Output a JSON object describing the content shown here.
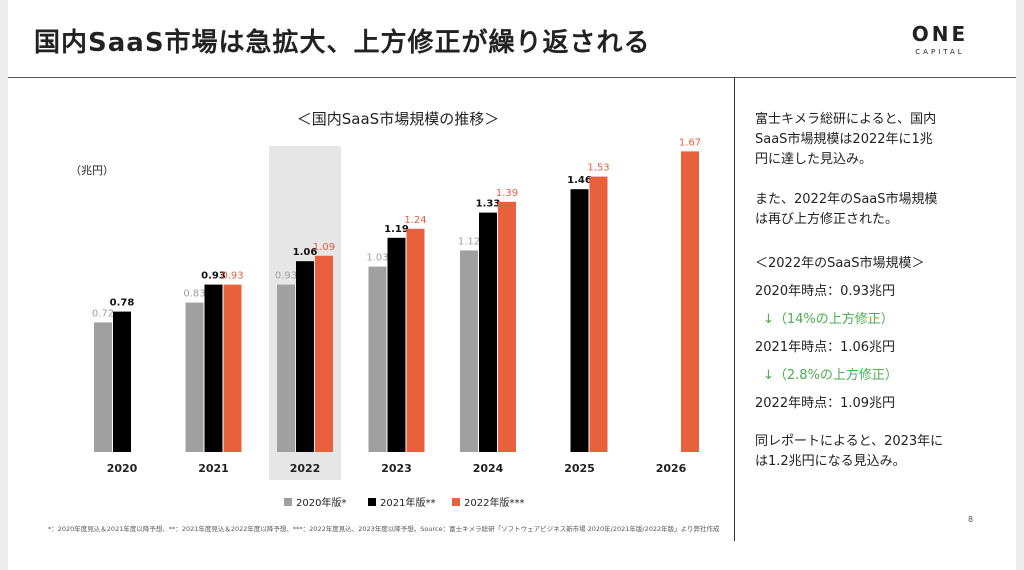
{
  "slide": {
    "title": "国内SaaS市場は急拡大、上方修正が繰り返される",
    "logo_main": "ONE",
    "logo_sub": "CAPITAL",
    "page_number": "8",
    "footnote": "*：2020年度見込＆2021年度以降予想、**：2021年度見込＆2022年度以降予想、***：2022年度見込、2023年度以降予想。Source：富士キメラ総研「ソフトウェアビジネス新市場 2020年/2021年版/2022年版」より弊社作成"
  },
  "side_panel": {
    "para1": [
      "富士キメラ総研によると、国内",
      "SaaS市場規模は2022年に1兆",
      "円に達した見込み。"
    ],
    "para2": [
      "また、2022年のSaaS市場規模",
      "は再び上方修正された。"
    ],
    "section_title": "＜2022年のSaaS市場規模＞",
    "rows": [
      {
        "text": "2020年時点：0.93兆円",
        "type": "normal"
      },
      {
        "text": "↓（14%の上方修正）",
        "type": "green"
      },
      {
        "text": "2021年時点：1.06兆円",
        "type": "normal"
      },
      {
        "text": "↓（2.8%の上方修正）",
        "type": "green"
      },
      {
        "text": "2022年時点：1.09兆円",
        "type": "normal"
      }
    ],
    "para3": [
      "同レポートによると、2023年に",
      "は1.2兆円になる見込み。"
    ]
  },
  "chart_data": {
    "type": "bar",
    "title": "＜国内SaaS市場規模の推移＞",
    "unit_label": "（兆円）",
    "categories": [
      "2020",
      "2021",
      "2022",
      "2023",
      "2024",
      "2025",
      "2026"
    ],
    "highlight_category": "2022",
    "series": [
      {
        "name": "2020年版*",
        "color": "#a0a0a0",
        "values": [
          0.72,
          0.83,
          0.93,
          1.03,
          1.12,
          null,
          null
        ]
      },
      {
        "name": "2021年版**",
        "color": "#000000",
        "values": [
          0.78,
          0.93,
          1.06,
          1.19,
          1.33,
          1.46,
          null
        ]
      },
      {
        "name": "2022年版***",
        "color": "#e8603c",
        "values": [
          null,
          0.93,
          1.09,
          1.24,
          1.39,
          1.53,
          1.67
        ]
      }
    ],
    "ylim": [
      0,
      1.8
    ],
    "legend_position": "bottom",
    "grid": false
  }
}
